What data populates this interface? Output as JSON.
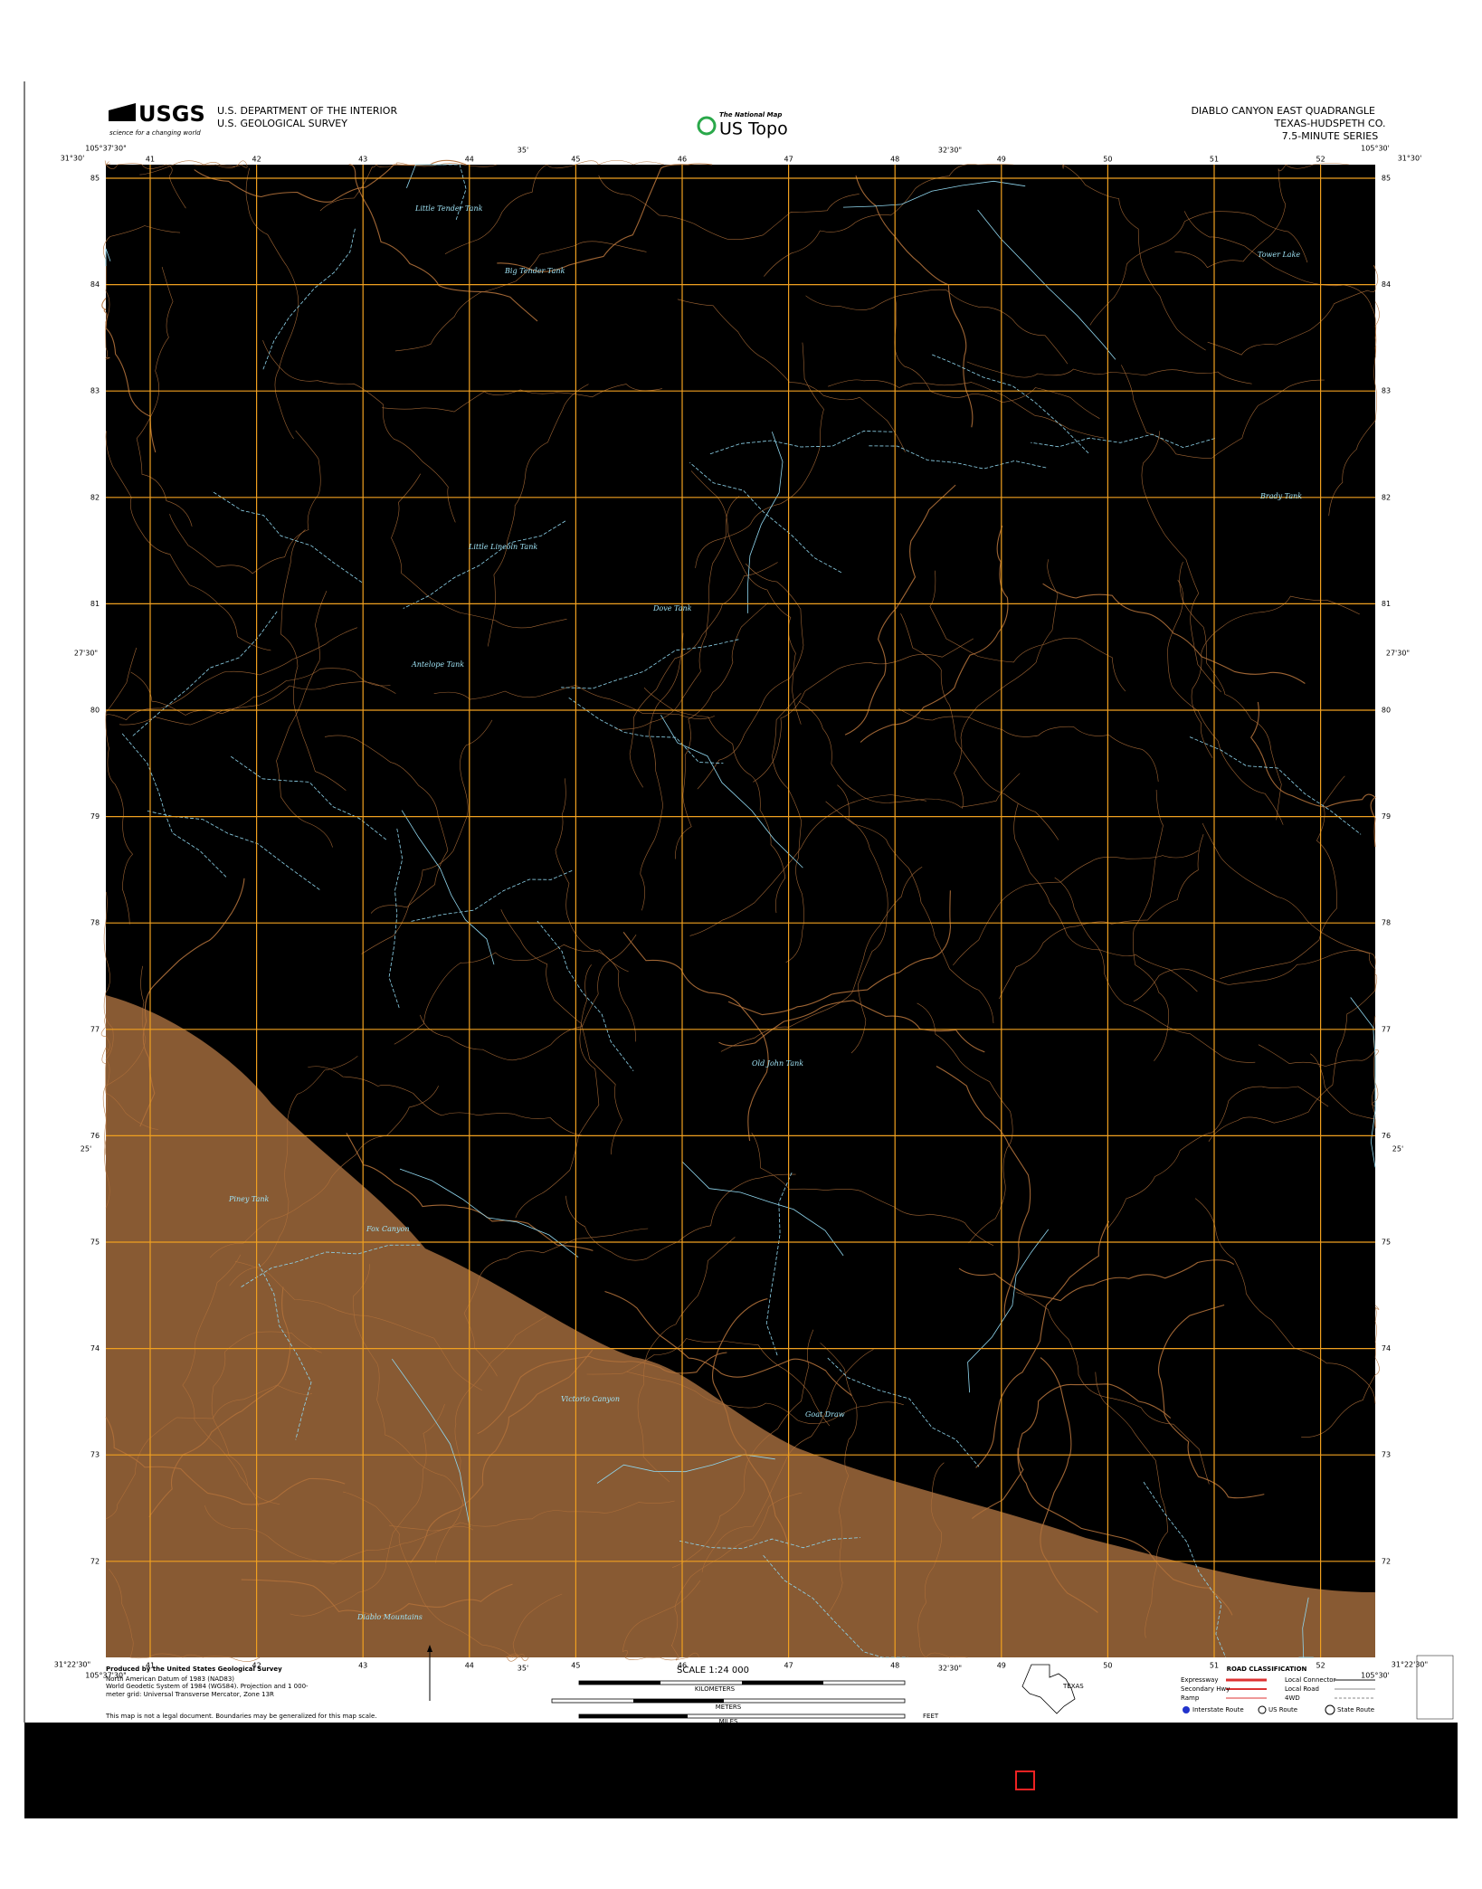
{
  "header": {
    "agency_logo": "USGS",
    "agency_tagline": "science for a changing world",
    "department": "U.S. DEPARTMENT OF THE INTERIOR",
    "survey": "U.S. GEOLOGICAL SURVEY",
    "national_map": "The National Map",
    "product": "US Topo",
    "quadrangle": "DIABLO CANYON EAST QUADRANGLE",
    "county": "TEXAS-HUDSPETH CO.",
    "series": "7.5-MINUTE SERIES"
  },
  "coords": {
    "west_lon": "105°37'30\"",
    "east_lon": "105°30'",
    "north_lat": "31°30'",
    "south_lat": "31°22'30\"",
    "mid_lon_a": "35'",
    "mid_lon_b": "32'30\"",
    "mid_lat_a": "27'30\"",
    "mid_lat_b": "25'"
  },
  "grid": {
    "eastings": [
      "41",
      "42",
      "43",
      "44",
      "45",
      "46",
      "47",
      "48",
      "49",
      "50",
      "51",
      "52"
    ],
    "northings": [
      "85",
      "84",
      "83",
      "82",
      "81",
      "80",
      "79",
      "78",
      "77",
      "76",
      "75",
      "74",
      "73",
      "72"
    ]
  },
  "places": {
    "little_tender_tank": "Little Tender Tank",
    "big_tender_tank": "Big Tender Tank",
    "tower_lake": "Tower Lake",
    "little_lincoln_tank": "Little Lincoln Tank",
    "brady_tank": "Brady Tank",
    "dove_tank": "Dove Tank",
    "antelope_tank": "Antelope Tank",
    "old_john_tank": "Old John Tank",
    "piney_tank": "Piney Tank",
    "fox_canyon": "Fox Canyon",
    "victorio_canyon": "Victorio Canyon",
    "goat_draw": "Goat Draw",
    "diablo_mountains": "Diablo Mountains"
  },
  "footer": {
    "producer": "Produced by the United States Geological Survey",
    "datum": "North American Datum of 1983 (NAD83)",
    "projection": "World Geodetic System of 1984 (WGS84). Projection and 1 000-meter grid: Universal Transverse Mercator, Zone 13R",
    "legal": "This map is not a legal document. Boundaries may be generalized for this map scale.",
    "scale": "SCALE 1:24 000",
    "kilometers": "KILOMETERS",
    "meters": "METERS",
    "miles": "MILES",
    "feet": "FEET",
    "state": "TEXAS",
    "road_title": "ROAD CLASSIFICATION",
    "road_expressway": "Expressway",
    "road_secondary": "Secondary Hwy",
    "road_ramp": "Ramp",
    "road_local_connector": "Local Connector",
    "road_local": "Local Road",
    "road_4wd": "4WD",
    "interstate": "Interstate Route",
    "us_route": "US Route",
    "state_route": "State Route"
  }
}
